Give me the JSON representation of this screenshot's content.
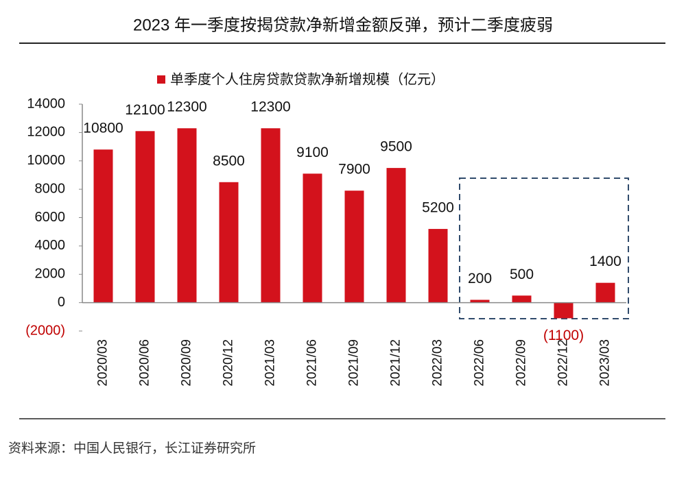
{
  "chart_data": {
    "type": "bar",
    "title": "2023 年一季度按揭贷款净新增金额反弹，预计二季度疲弱",
    "source": "资料来源：中国人民银行，长江证券研究所",
    "categories": [
      "2020/03",
      "2020/06",
      "2020/09",
      "2020/12",
      "2021/03",
      "2021/06",
      "2021/09",
      "2021/12",
      "2022/03",
      "2022/06",
      "2022/09",
      "2022/12",
      "2023/03"
    ],
    "series": [
      {
        "name": "单季度个人住房贷款贷款净新增规模（亿元）",
        "color": "#d3121c",
        "values": [
          10800,
          12100,
          12300,
          8500,
          12300,
          9100,
          7900,
          9500,
          5200,
          200,
          500,
          -1100,
          1400
        ],
        "value_labels": [
          "10800",
          "12100",
          "12300",
          "8500",
          "12300",
          "9100",
          "7900",
          "9500",
          "5200",
          "200",
          "500",
          "(1100)",
          "1400"
        ]
      }
    ],
    "ylim": [
      -2000,
      14000
    ],
    "yticks": [
      {
        "value": -2000,
        "label": "(2000)"
      },
      0,
      2000,
      4000,
      6000,
      8000,
      10000,
      12000,
      14000
    ],
    "negative_label_color": "#c00000",
    "legend": "top"
  }
}
